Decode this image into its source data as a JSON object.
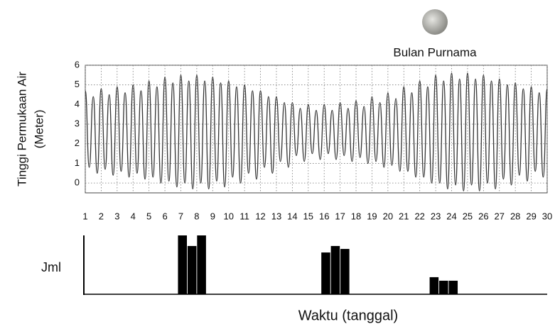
{
  "chart_data": [
    {
      "type": "line",
      "y_label": [
        "Tinggi Permukaan Air",
        "(Meter)"
      ],
      "annotation": "Bulan Purnama",
      "xlim": [
        1,
        30
      ],
      "ylim": [
        -0.5,
        6
      ],
      "xticks": [
        1,
        2,
        3,
        4,
        5,
        6,
        7,
        8,
        9,
        10,
        11,
        12,
        13,
        14,
        15,
        16,
        17,
        18,
        19,
        20,
        21,
        22,
        23,
        24,
        25,
        26,
        27,
        28,
        29,
        30
      ],
      "yticks": [
        0,
        1,
        2,
        3,
        4,
        5,
        6
      ],
      "grid": true,
      "color": "#333333",
      "x": [
        1,
        1.25,
        1.5,
        1.75,
        2,
        2.25,
        2.5,
        2.75,
        3,
        3.25,
        3.5,
        3.75,
        4,
        4.25,
        4.5,
        4.75,
        5,
        5.25,
        5.5,
        5.75,
        6,
        6.25,
        6.5,
        6.75,
        7,
        7.25,
        7.5,
        7.75,
        8,
        8.25,
        8.5,
        8.75,
        9,
        9.25,
        9.5,
        9.75,
        10,
        10.25,
        10.5,
        10.75,
        11,
        11.25,
        11.5,
        11.75,
        12,
        12.25,
        12.5,
        12.75,
        13,
        13.25,
        13.5,
        13.75,
        14,
        14.25,
        14.5,
        14.75,
        15,
        15.25,
        15.5,
        15.75,
        16,
        16.25,
        16.5,
        16.75,
        17,
        17.25,
        17.5,
        17.75,
        18,
        18.25,
        18.5,
        18.75,
        19,
        19.25,
        19.5,
        19.75,
        20,
        20.25,
        20.5,
        20.75,
        21,
        21.25,
        21.5,
        21.75,
        22,
        22.25,
        22.5,
        22.75,
        23,
        23.25,
        23.5,
        23.75,
        24,
        24.25,
        24.5,
        24.75,
        25,
        25.25,
        25.5,
        25.75,
        26,
        26.25,
        26.5,
        26.75,
        27,
        27.25,
        27.5,
        27.75,
        28,
        28.25,
        28.5,
        28.75,
        29,
        29.25,
        29.5,
        29.75,
        30
      ],
      "values": [
        4.7,
        0.8,
        4.4,
        0.5,
        4.8,
        0.7,
        4.5,
        0.4,
        4.9,
        0.6,
        4.6,
        0.3,
        5.0,
        0.5,
        4.7,
        0.2,
        5.2,
        0.3,
        4.9,
        0.0,
        5.4,
        0.1,
        5.1,
        -0.2,
        5.5,
        0.0,
        5.2,
        -0.3,
        5.5,
        0.0,
        5.2,
        -0.3,
        5.4,
        0.1,
        5.1,
        -0.2,
        5.2,
        0.3,
        4.9,
        0.0,
        5.0,
        0.5,
        4.7,
        0.2,
        4.7,
        0.8,
        4.4,
        0.5,
        4.4,
        1.1,
        4.1,
        0.8,
        4.1,
        1.4,
        3.8,
        1.1,
        4.0,
        1.5,
        3.7,
        1.2,
        4.0,
        1.5,
        3.7,
        1.2,
        4.1,
        1.4,
        3.8,
        1.1,
        4.2,
        1.3,
        3.9,
        1.0,
        4.4,
        1.1,
        4.1,
        0.8,
        4.6,
        0.9,
        4.3,
        0.6,
        4.9,
        0.6,
        4.6,
        0.3,
        5.2,
        0.3,
        4.9,
        0.0,
        5.5,
        0.0,
        5.2,
        -0.3,
        5.6,
        -0.1,
        5.3,
        -0.4,
        5.6,
        -0.1,
        5.3,
        -0.4,
        5.5,
        0.0,
        5.2,
        -0.3,
        5.3,
        0.2,
        5.0,
        -0.1,
        5.1,
        0.4,
        4.8,
        0.1,
        4.9,
        0.6,
        4.6,
        0.3,
        4.8
      ]
    },
    {
      "type": "bar",
      "y_label": "Jml",
      "x_label": "Waktu (tanggal)",
      "xlim": [
        1,
        30
      ],
      "ylim": [
        0,
        10
      ],
      "color": "#000000",
      "x": [
        7.1,
        7.7,
        8.3,
        16.1,
        16.7,
        17.3,
        22.9,
        23.5,
        24.1
      ],
      "values": [
        10,
        8.2,
        10,
        7.1,
        8.2,
        7.7,
        2.9,
        2.3,
        2.3
      ]
    }
  ]
}
